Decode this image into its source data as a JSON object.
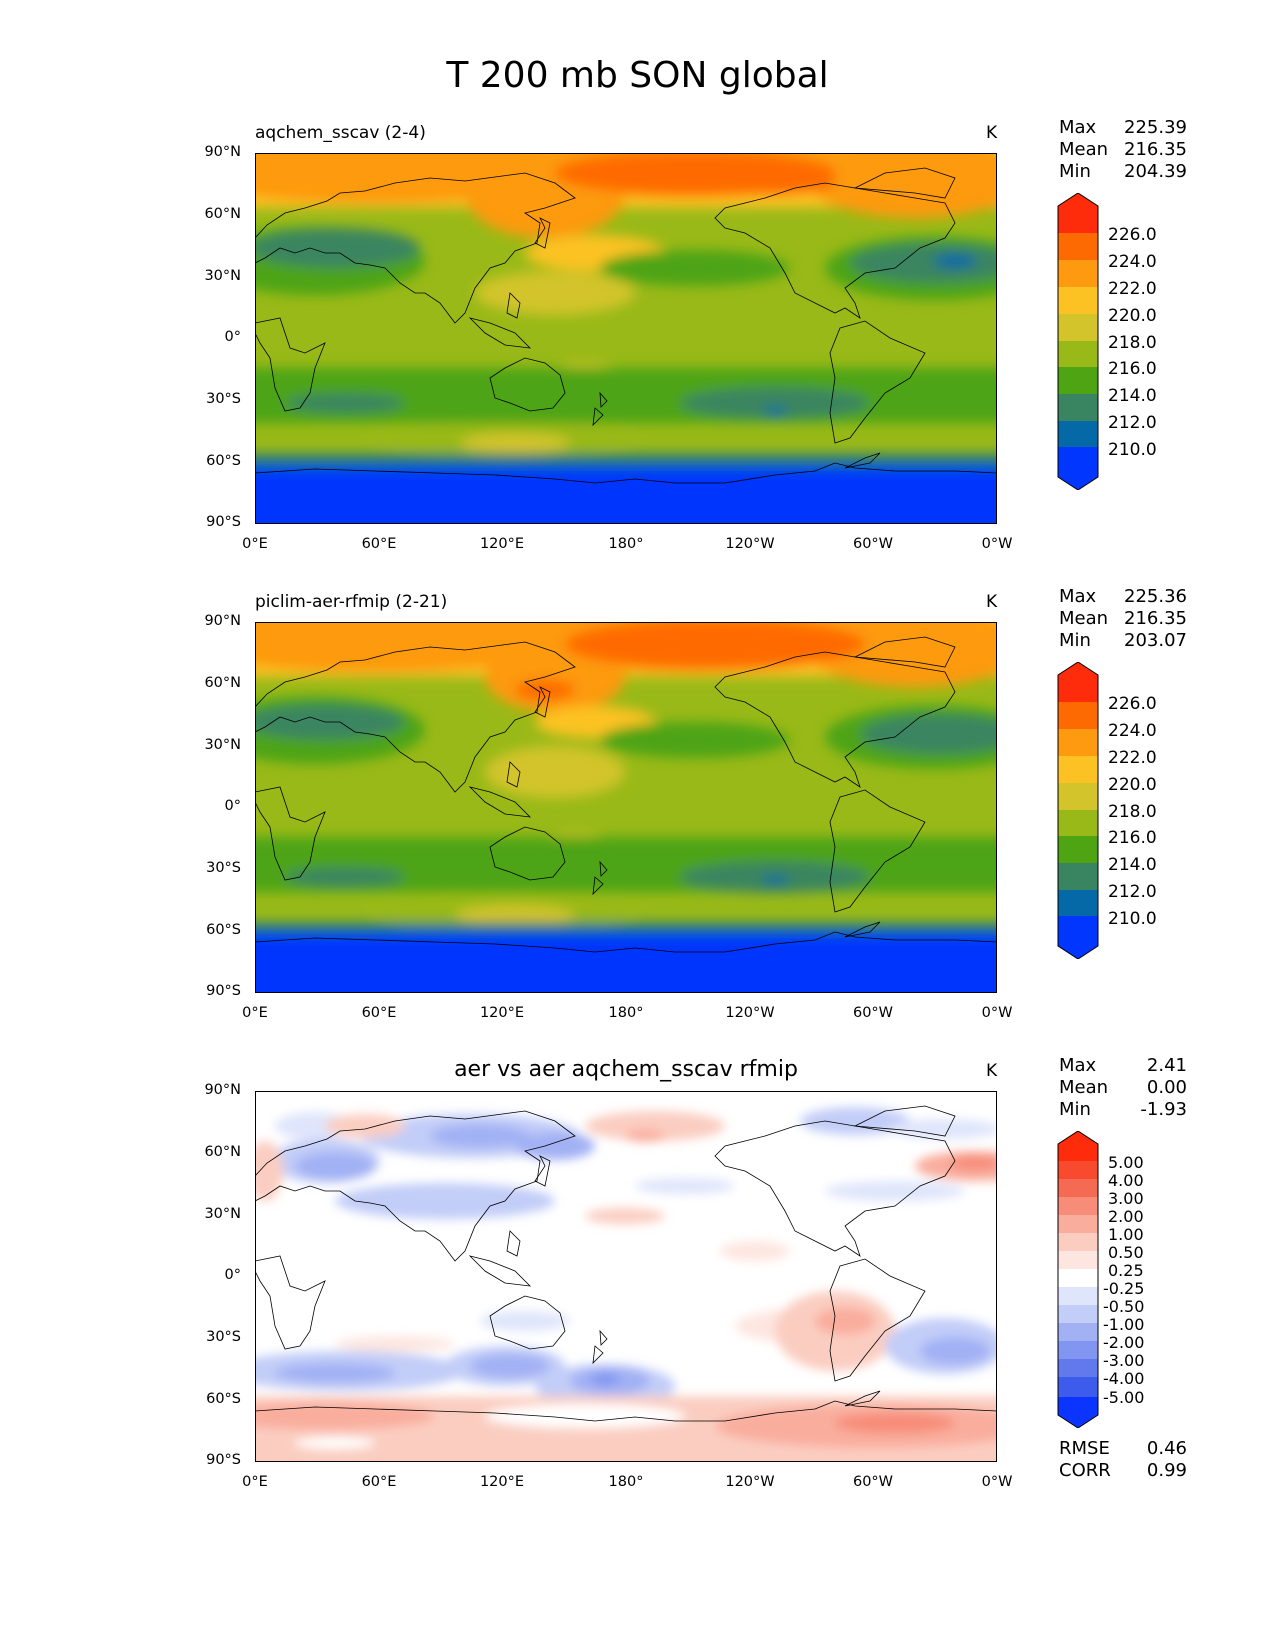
{
  "figure": {
    "title": "T 200 mb SON global"
  },
  "chart_data": [
    {
      "type": "heatmap",
      "panel": "test",
      "label": "aqchem_sscav (2-4)",
      "units": "K",
      "stats": {
        "max_label": "Max",
        "max": "225.39",
        "mean_label": "Mean",
        "mean": "216.35",
        "min_label": "Min",
        "min": "204.39"
      },
      "lat_ticks": [
        "90°N",
        "60°N",
        "30°N",
        "0°",
        "30°S",
        "60°S",
        "90°S"
      ],
      "lon_ticks": [
        "0°E",
        "60°E",
        "120°E",
        "180°",
        "120°W",
        "60°W",
        "0°W"
      ],
      "xlim": [
        0,
        360
      ],
      "ylim": [
        -90,
        90
      ],
      "colorbar": {
        "labels": [
          "226.0",
          "224.0",
          "222.0",
          "220.0",
          "218.0",
          "216.0",
          "214.0",
          "212.0",
          "210.0"
        ],
        "colors": [
          "#fe2c0a",
          "#fe6a02",
          "#fd9a0f",
          "#fcc224",
          "#d2c42a",
          "#99b918",
          "#4ea413",
          "#3a8561",
          "#0669a7",
          "#0036fe"
        ]
      }
    },
    {
      "type": "heatmap",
      "panel": "reference",
      "label": "piclim-aer-rfmip (2-21)",
      "units": "K",
      "stats": {
        "max_label": "Max",
        "max": "225.36",
        "mean_label": "Mean",
        "mean": "216.35",
        "min_label": "Min",
        "min": "203.07"
      },
      "lat_ticks": [
        "90°N",
        "60°N",
        "30°N",
        "0°",
        "30°S",
        "60°S",
        "90°S"
      ],
      "lon_ticks": [
        "0°E",
        "60°E",
        "120°E",
        "180°",
        "120°W",
        "60°W",
        "0°W"
      ],
      "xlim": [
        0,
        360
      ],
      "ylim": [
        -90,
        90
      ],
      "colorbar": {
        "labels": [
          "226.0",
          "224.0",
          "222.0",
          "220.0",
          "218.0",
          "216.0",
          "214.0",
          "212.0",
          "210.0"
        ],
        "colors": [
          "#fe2c0a",
          "#fe6a02",
          "#fd9a0f",
          "#fcc224",
          "#d2c42a",
          "#99b918",
          "#4ea413",
          "#3a8561",
          "#0669a7",
          "#0036fe"
        ]
      }
    },
    {
      "type": "heatmap",
      "panel": "difference",
      "label": "aer vs aer aqchem_sscav rfmip",
      "units": "K",
      "stats": {
        "max_label": "Max",
        "max": "2.41",
        "mean_label": "Mean",
        "mean": "0.00",
        "min_label": "Min",
        "min": "-1.93"
      },
      "lat_ticks": [
        "90°N",
        "60°N",
        "30°N",
        "0°",
        "30°S",
        "60°S",
        "90°S"
      ],
      "lon_ticks": [
        "0°E",
        "60°E",
        "120°E",
        "180°",
        "120°W",
        "60°W",
        "0°W"
      ],
      "xlim": [
        0,
        360
      ],
      "ylim": [
        -90,
        90
      ],
      "colorbar": {
        "labels": [
          "5.00",
          "4.00",
          "3.00",
          "2.00",
          "1.00",
          "0.50",
          "0.25",
          "-0.25",
          "-0.50",
          "-1.00",
          "-2.00",
          "-3.00",
          "-4.00",
          "-5.00"
        ],
        "colors": [
          "#fe2c0a",
          "#f84a2e",
          "#f56a52",
          "#f78c78",
          "#f9ad9d",
          "#fbcdc1",
          "#fde6e0",
          "#ffffff",
          "#dfe5fb",
          "#c2cdf8",
          "#a2b1f4",
          "#8296f1",
          "#6279ee",
          "#3d5cec",
          "#0b35fe"
        ]
      },
      "metrics": {
        "rmse_label": "RMSE",
        "rmse": "0.46",
        "corr_label": "CORR",
        "corr": "0.99"
      }
    }
  ]
}
